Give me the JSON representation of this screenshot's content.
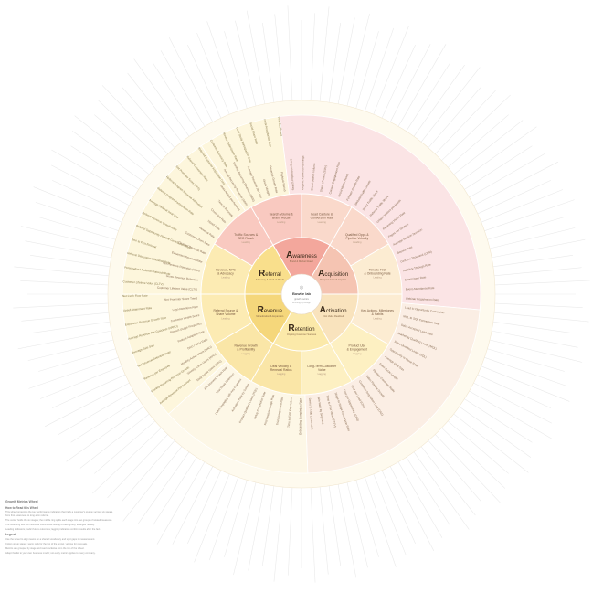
{
  "center": {
    "title": "Bowtie lab",
    "line2": "growth metrics",
    "line3": "Winning by Design"
  },
  "colors": {
    "awareness": "#f3a79c",
    "acquisition": "#f5c4b2",
    "activation": "#f9e3bd",
    "retention": "#fbe9a9",
    "revenue": "#f5d77b",
    "referral": "#f9df8c",
    "pink_ring": "#fbe4e5",
    "peach_ring": "#fbeee4",
    "cream_ring": "#fdf7e6",
    "yellow_ring": "#fdf6dc",
    "outer_ring": "#fefaee"
  },
  "stages": [
    {
      "key": "awareness",
      "initial": "A",
      "rest": "wareness",
      "sub": "Brand & Market Reach"
    },
    {
      "key": "acquisition",
      "initial": "A",
      "rest": "cquisition",
      "sub": "Prospect & Lead Capture"
    },
    {
      "key": "activation",
      "initial": "A",
      "rest": "ctivation",
      "sub": "First Value Realized"
    },
    {
      "key": "retention",
      "initial": "R",
      "rest": "etention",
      "sub": "Ongoing Customer Success"
    },
    {
      "key": "revenue",
      "initial": "R",
      "rest": "evenue",
      "sub": "Monetization & Expansion"
    },
    {
      "key": "referral",
      "initial": "R",
      "rest": "eferral",
      "sub": "Advocacy & Word of Mouth"
    }
  ],
  "subsegments": [
    {
      "key": "awareness",
      "label": "Traffic Sources & SEO Reach",
      "tag": "Leading"
    },
    {
      "key": "awareness",
      "label": "Search Volume & Brand Recall",
      "tag": "Leading"
    },
    {
      "key": "acquisition",
      "label": "Lead Capture & Conversion Rate",
      "tag": "Leading"
    },
    {
      "key": "acquisition",
      "label": "Qualified Opps & Pipeline Velocity",
      "tag": "Leading"
    },
    {
      "key": "activation",
      "label": "Time to First & Onboarding Rate",
      "tag": "Leading"
    },
    {
      "key": "activation",
      "label": "Key Actions, Milestones & Habits",
      "tag": "Leading"
    },
    {
      "key": "retention",
      "label": "Product Use & Engagement",
      "tag": "Lagging"
    },
    {
      "key": "retention",
      "label": "Long-Term Customer Value",
      "tag": "Lagging"
    },
    {
      "key": "revenue",
      "label": "Deal Velocity & Renewal Ratios",
      "tag": "Lagging"
    },
    {
      "key": "revenue",
      "label": "Revenue Growth & Profitability",
      "tag": "Lagging"
    },
    {
      "key": "referral",
      "label": "Referral Source & Share Volume",
      "tag": "Leading"
    },
    {
      "key": "referral",
      "label": "Reviews, NPS & Advocacy",
      "tag": "Leading"
    }
  ],
  "ring_metrics": [
    {
      "start": -7,
      "end": 95,
      "band": "pink",
      "items": [
        "Search Impression Share",
        "Organic Keyword Rankings",
        "Brand Search Volume",
        "Share of Voice (SOV)",
        "Content Engagement Rate",
        "Social Media Reach",
        "Follower Growth Rate",
        "Website Traffic Growth",
        "Direct Traffic Share",
        "Referral Traffic Share",
        "Unique Visitors per Month",
        "Returning Visitor Rate",
        "Pages per Session",
        "Average Session Duration",
        "Bounce Rate",
        "Cost per Thousand (CPM)",
        "Ad Click-Through Rate",
        "Email Open Rate",
        "Event Attendance Rate",
        "Webinar Registration Rate"
      ]
    },
    {
      "start": 95,
      "end": 178,
      "band": "peach",
      "items": [
        "Lead to Opportunity Conversion",
        "MQL to SQL Conversion Rate",
        "Sales Accepted Lead Rate",
        "Marketing Qualified Leads (MQL)",
        "Sales Qualified Leads (SQL)",
        "Opportunity to Close Rate",
        "Average Deal Size",
        "Sales Cycle Length",
        "Pipeline Coverage Ratio",
        "Sales Pipeline Growth",
        "Customer Acquisition Cost (CAC)",
        "Cost per Lead (CPL)",
        "Cost per Opportunity (CPO)",
        "Stage-to-Stage Conversion Rate",
        "Time to First Value (TTFV)",
        "Win Rate by Segment",
        "Demo to Trial Conversion"
      ]
    },
    {
      "start": 178,
      "end": 228,
      "band": "cream",
      "items": [
        "Onboarding Completion Rate",
        "Time to First Key Action",
        "Trial Engagement Rate",
        "First Feature Usage Rate",
        "Setup Completion Rate",
        "Product Qualified Leads (PQL)",
        "Activation Rate by Cohort",
        "Users Engaging with Key Features",
        "First Week Retention",
        "Aha Moment Reach Rate"
      ]
    },
    {
      "start": 228,
      "end": 270,
      "band": "yellow",
      "items": [
        "Daily Active Users (DAU)",
        "Weekly Active Users (WAU)",
        "Monthly Active Users (MAU)",
        "DAU / MAU Ratio",
        "Feature Adoption Rate",
        "Product Usage Frequency",
        "Customer Health Score",
        "Logo Retention Rate",
        "Net Promoter Score Trend"
      ]
    },
    {
      "start": 270,
      "end": 326,
      "band": "yellow",
      "items": [
        "Customer Lifetime Value (CLTV)",
        "Gross Revenue Retention",
        "Net Revenue Retention (NRR)",
        "Expansion Revenue Rate",
        "Churned Revenue Rate",
        "Customer Churn Rate",
        "Renewal Rate",
        "Upsell Rate",
        "Cross-Sell Rate",
        "Time to Renewal",
        "Seats Added per Account"
      ]
    },
    {
      "start": 326,
      "end": 353,
      "band": "yellow",
      "items": [
        "Annual Recurring Revenue (ARR)",
        "Monthly Recurring Revenue (MRR)",
        "Average Revenue per User",
        "Gross Margin",
        "Revenue Growth Rate",
        "Payback Period"
      ]
    }
  ],
  "left_metrics": [
    "Average Revenue Per Account",
    "Monthly Recurring Revenue Growth",
    "Revenue per Employee",
    "Net Revenue Retention Rate",
    "Average Sale Size",
    "Average Revenue Per Customer (ARPU)",
    "Expansion Revenue Growth Rate",
    "Upsell Attainment Rate",
    "Net Cash Flow Rate",
    "Customer Lifetime Value (CLTV)",
    "Personalized Referral Outreach Rate",
    "Referral Discussion Utilization Rate",
    "Time to First Referral",
    "Referral Opportunity Pipeline Contribution Rate",
    "Referral Revenue Growth Rate",
    "Average Referral Deal Size",
    "Referral Program Participation Rate",
    "Referral Program Revenue Attribution",
    "Net Promoter Score (NPS)",
    "Referral Conversion Rate",
    "Referred Customer Acquisition Cost",
    "Customer Advocacy Rate",
    "Review Submission Rate",
    "Case Study Participation Rate",
    "Social Share Rate",
    "Invite Acceptance Rate",
    "Viral Coefficient"
  ],
  "legend": {
    "title": "Growth Metrics Wheel",
    "sub1": "How to Read this Wheel",
    "sub2": "Legend",
    "paragraphs": [
      "This wheel organizes the key performance indicators that track a customer's journey across six stages, from first awareness to long-term referral.",
      "The center holds the six stages; the middle ring splits each stage into two groups of related measures.",
      "The outer ring lists the individual metrics that belong to each group, arranged radially.",
      "Leading indicators predict future outcomes; lagging indicators confirm results after the fact.",
      "Use the wheel to align teams on a shared vocabulary and spot gaps in measurement.",
      "Colors group stages: warm reds for the top of the funnel, yellows for post-sale.",
      "Metrics are grouped by stage and read clockwise from the top of the wheel.",
      "Adapt the list to your own business model; not every metric applies to every company."
    ]
  }
}
